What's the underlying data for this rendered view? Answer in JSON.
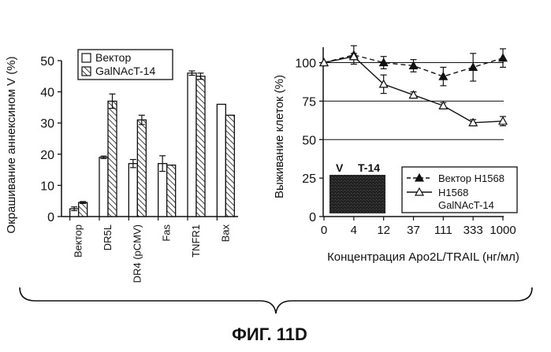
{
  "figure": {
    "label": "ФИГ. 11D"
  },
  "chart_data": [
    {
      "type": "bar",
      "ylabel": "Окрашивание аннексином V (%)",
      "ylim": [
        0,
        50
      ],
      "yticks": [
        0,
        10,
        20,
        30,
        40,
        50
      ],
      "categories": [
        "Вектор",
        "DR5L",
        "DR4 (pCMV)",
        "Fas",
        "TNFR1",
        "Bax"
      ],
      "series": [
        {
          "name": "Вектор",
          "values": [
            2.5,
            19,
            17,
            17,
            46,
            36
          ],
          "errors": [
            0.6,
            0.4,
            1.3,
            2.5,
            0.7,
            0
          ]
        },
        {
          "name": "GalNAcT-14",
          "values": [
            4.5,
            37,
            31,
            16.5,
            45,
            32.5
          ],
          "errors": [
            0.3,
            2.3,
            1.5,
            0,
            1,
            0
          ]
        }
      ],
      "legend": "top-left",
      "colors": {
        "vector": "#ffffff",
        "galnact": "#ffffff",
        "stroke": "#111111"
      }
    },
    {
      "type": "line",
      "xlabel": "Концентрация Apo2L/TRAIL (нг/мл)",
      "ylabel": "Выживание клеток (%)",
      "ylim": [
        0,
        110
      ],
      "yticks": [
        0,
        25,
        50,
        75,
        100
      ],
      "x": [
        "0",
        "4",
        "12",
        "37",
        "111",
        "333",
        "1000"
      ],
      "series": [
        {
          "name": "Вектор H1568",
          "values": [
            100,
            105,
            100,
            98,
            91,
            97,
            103
          ],
          "errors": [
            0,
            6,
            4,
            4,
            6,
            9,
            6
          ],
          "style": "dashed",
          "marker": "filled-triangle"
        },
        {
          "name": "H1568 GalNAcT-14",
          "values": [
            100,
            104,
            86,
            79,
            72,
            61,
            62
          ],
          "errors": [
            0,
            2,
            6,
            2,
            2,
            2,
            3
          ],
          "style": "solid",
          "marker": "open-triangle"
        }
      ],
      "legend": "bottom-right",
      "inset": {
        "labels": [
          "V",
          "T-14"
        ],
        "color": "#222222"
      }
    }
  ]
}
